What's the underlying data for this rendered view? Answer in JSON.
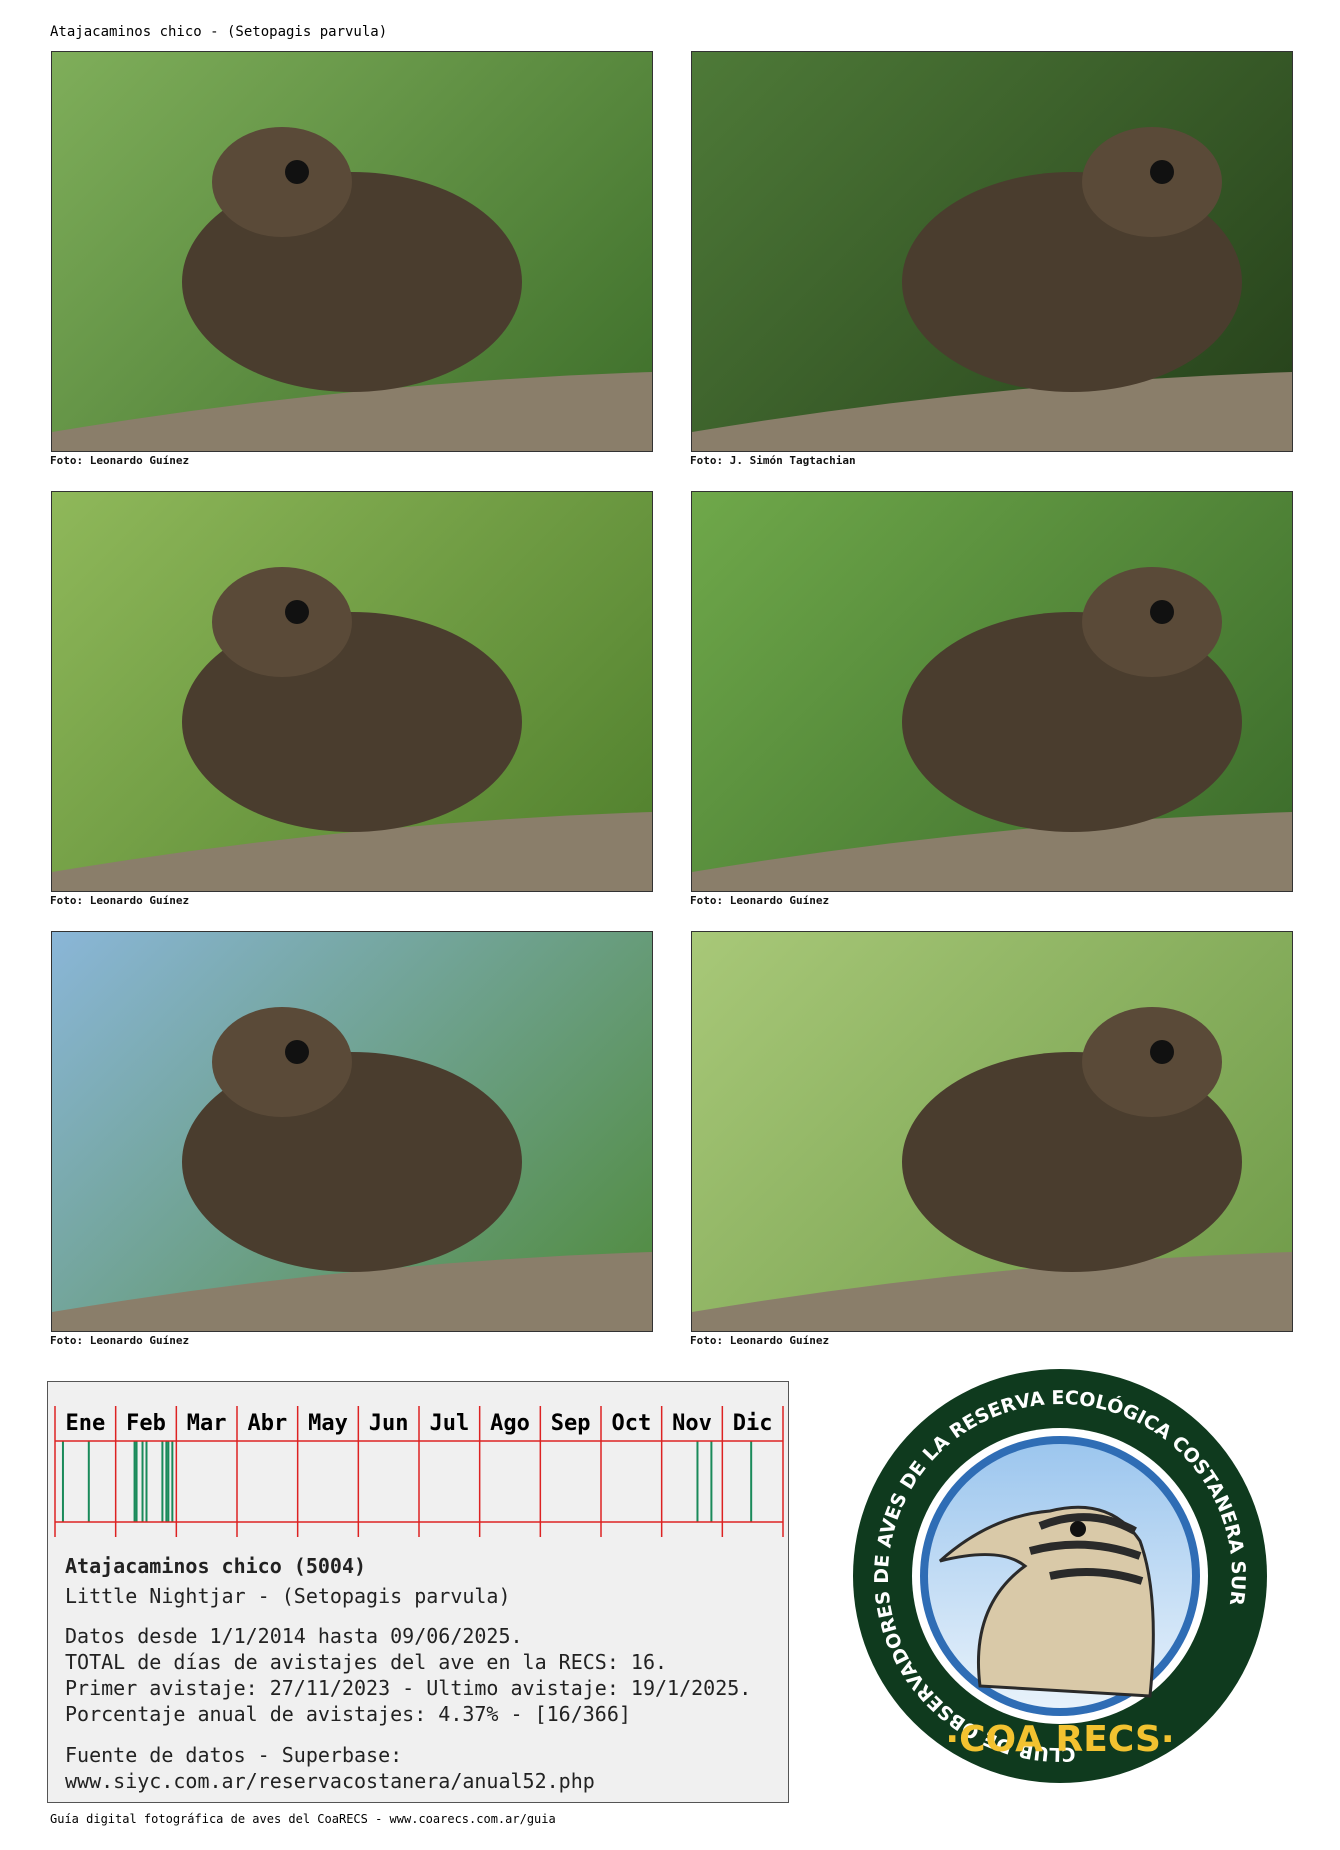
{
  "header": {
    "title": "Atajacaminos chico - (Setopagis parvula)"
  },
  "photos": [
    {
      "caption": "Foto: Leonardo Guínez"
    },
    {
      "caption": "Foto: J. Simón Tagtachian"
    },
    {
      "caption": "Foto: Leonardo Guínez"
    },
    {
      "caption": "Foto: Leonardo Guínez"
    },
    {
      "caption": "Foto: Leonardo Guínez"
    },
    {
      "caption": "Foto: Leonardo Guínez"
    }
  ],
  "calendar": {
    "months": [
      "Ene",
      "Feb",
      "Mar",
      "Abr",
      "May",
      "Jun",
      "Jul",
      "Ago",
      "Sep",
      "Oct",
      "Nov",
      "Dic"
    ],
    "sighting_days": [
      4,
      17,
      40,
      41,
      44,
      46,
      54,
      56,
      57,
      59,
      323,
      330,
      350
    ]
  },
  "info": {
    "name": "Atajacaminos chico (5004)",
    "english": "Little Nightjar - (Setopagis parvula)",
    "lines": [
      "Datos desde 1/1/2014 hasta 09/06/2025.",
      "TOTAL de días de avistajes del ave en la RECS: 16.",
      "Primer avistaje: 27/11/2023 - Ultimo avistaje: 19/1/2025.",
      "Porcentaje anual de avistajes: 4.37% - [16/366]"
    ],
    "source": [
      "Fuente de datos - Superbase:",
      "www.siyc.com.ar/reservacostanera/anual52.php"
    ]
  },
  "logo": {
    "ring_text": "CLUB DE OBSERVADORES DE AVES DE LA RESERVA ECOLÓGICA COSTANERA SUR",
    "name": "·COA RECS·"
  },
  "footer": {
    "text": "Guía digital fotográfica de aves del CoaRECS - www.coarecs.com.ar/guia"
  }
}
